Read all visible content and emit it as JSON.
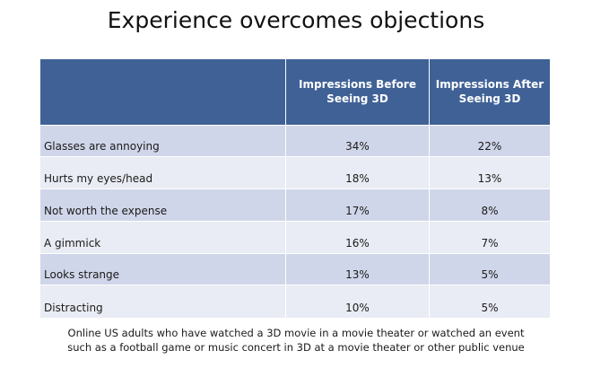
{
  "title": "Experience overcomes objections",
  "chart_data": {
    "type": "table",
    "columns": [
      "",
      "Impressions Before Seeing 3D",
      "Impressions After Seeing 3D"
    ],
    "header_lines": [
      [
        "Impressions Before",
        "Seeing 3D"
      ],
      [
        "Impressions After",
        "Seeing 3D"
      ]
    ],
    "rows": [
      {
        "label": "Glasses are annoying",
        "before": "34%",
        "after": "22%"
      },
      {
        "label": "Hurts my eyes/head",
        "before": "18%",
        "after": "13%"
      },
      {
        "label": "Not worth the expense",
        "before": "17%",
        "after": "8%"
      },
      {
        "label": "A gimmick",
        "before": "16%",
        "after": "7%"
      },
      {
        "label": "Looks strange",
        "before": "13%",
        "after": "5%"
      },
      {
        "label": "Distracting",
        "before": "10%",
        "after": "5%"
      }
    ]
  },
  "footnote": {
    "line1": "Online US adults who have watched a 3D movie in a movie theater or watched an event",
    "line2": "such as a football game or music concert in 3D at a movie theater or other public venue"
  },
  "colors": {
    "header_bg": "#3f6196",
    "row_odd": "#d0d6e9",
    "row_even": "#e9ecf4"
  }
}
